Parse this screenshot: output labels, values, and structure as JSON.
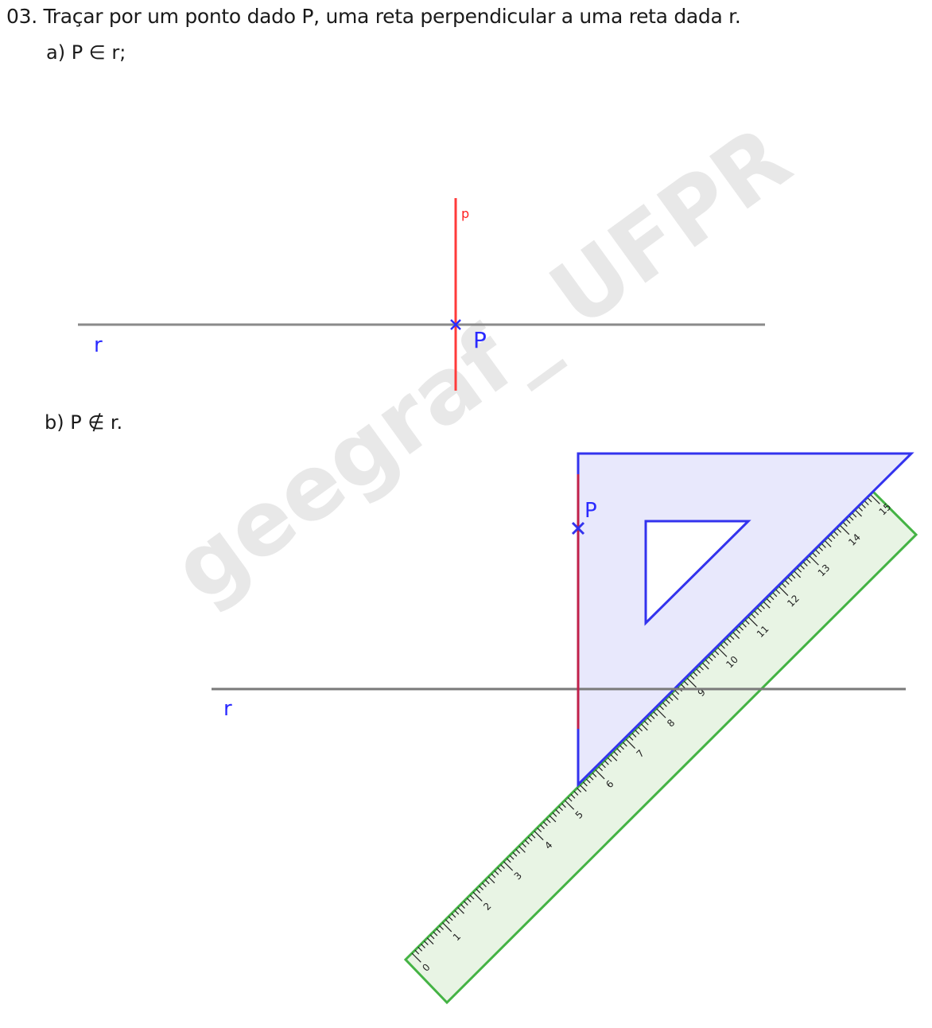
{
  "exercise": {
    "title": "03.  Traçar por um ponto dado P, uma reta perpendicular a uma reta dada r.",
    "part_a": "a) P ∈ r;",
    "part_b": "b) P ∉ r."
  },
  "figure_a": {
    "line_label": "r",
    "point_label": "P",
    "perpendicular_label": "p"
  },
  "figure_b": {
    "line_label": "r",
    "point_label": "P",
    "ruler_marks": [
      "0",
      "1",
      "2",
      "3",
      "4",
      "5",
      "6",
      "7",
      "8",
      "9",
      "10",
      "11",
      "12",
      "13",
      "14",
      "15"
    ]
  },
  "watermark": "geegraf_ UFPR",
  "colors": {
    "line_r": "#808080",
    "perpendicular": "#ff3b3b",
    "label_blue": "#2a2aff",
    "square_fill": "#e4e4fb",
    "square_stroke": "#3333ee",
    "ruler_fill": "#e8f4e4",
    "ruler_stroke": "#44b344",
    "construction": "#c0204a"
  }
}
